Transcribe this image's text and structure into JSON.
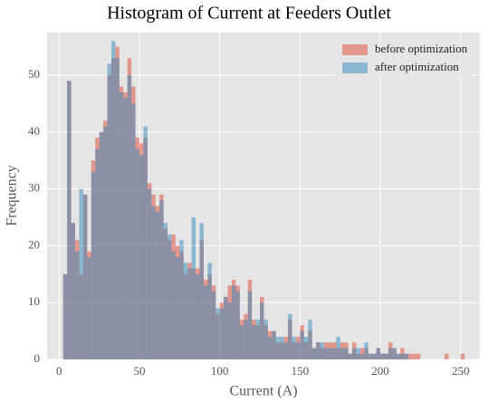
{
  "chart_data": {
    "type": "histogram",
    "title": "Histogram of Current at Feeders Outlet",
    "x_label": "Current (A)",
    "y_label": "Frequency",
    "bins": [
      2.5,
      5,
      7.5,
      10,
      12.5,
      15,
      17.5,
      20,
      22.5,
      25,
      27.5,
      30,
      32.5,
      35,
      37.5,
      40,
      42.5,
      45,
      47.5,
      50,
      52.5,
      55,
      57.5,
      60,
      62.5,
      65,
      67.5,
      70,
      72.5,
      75,
      77.5,
      80,
      82.5,
      85,
      87.5,
      90,
      92.5,
      95,
      97.5,
      100,
      102.5,
      105,
      107.5,
      110,
      112.5,
      115,
      117.5,
      120,
      122.5,
      125,
      127.5,
      130,
      132.5,
      135,
      137.5,
      140,
      142.5,
      145,
      147.5,
      150,
      152.5,
      155,
      157.5,
      160,
      162.5,
      165,
      167.5,
      170,
      172.5,
      175,
      177.5,
      180,
      182.5,
      185,
      187.5,
      190,
      192.5,
      195,
      197.5,
      200,
      202.5,
      205,
      207.5,
      210,
      212.5,
      215,
      217.5,
      220,
      222.5,
      225,
      227.5,
      230,
      232.5,
      235,
      237.5,
      240,
      242.5,
      245,
      247.5,
      250,
      252.5
    ],
    "series": [
      {
        "name": "before optimization",
        "color": "#E24A33",
        "values": [
          15,
          49,
          24,
          21,
          15,
          29,
          19,
          35,
          39,
          40,
          42,
          50,
          53,
          55,
          48,
          47,
          53,
          48,
          39,
          38,
          39,
          31,
          29,
          27,
          29,
          23,
          21,
          22,
          20,
          19,
          15,
          17,
          16,
          16,
          21,
          14,
          15,
          13,
          8,
          10,
          11,
          13,
          14,
          13,
          7,
          8,
          14,
          7,
          6,
          11,
          6,
          5,
          5,
          3,
          3,
          4,
          7,
          3,
          4,
          6,
          3,
          5,
          2,
          3,
          2,
          3,
          3,
          3,
          2,
          3,
          3,
          1,
          3,
          1,
          2,
          2,
          1,
          1,
          2,
          1,
          1,
          3,
          2,
          1,
          2,
          1,
          1,
          1,
          1,
          0,
          0,
          0,
          0,
          0,
          0,
          1,
          0,
          0,
          0,
          1
        ]
      },
      {
        "name": "after optimization",
        "color": "#348ABD",
        "values": [
          15,
          49,
          24,
          19,
          30,
          29,
          18,
          33,
          37,
          40,
          41,
          52,
          56,
          53,
          47,
          46,
          50,
          45,
          37,
          36,
          41,
          30,
          27,
          26,
          28,
          24,
          22,
          19,
          18,
          21,
          17,
          16,
          25,
          15,
          24,
          13,
          17,
          12,
          9,
          9,
          11,
          10,
          13,
          12,
          6,
          7,
          12,
          6,
          7,
          10,
          7,
          4,
          5,
          4,
          4,
          3,
          8,
          4,
          3,
          5,
          4,
          7,
          2,
          3,
          3,
          2,
          2,
          2,
          4,
          2,
          2,
          1,
          2,
          2,
          1,
          3,
          1,
          1,
          2,
          1,
          1,
          2,
          2,
          1,
          1,
          1,
          0,
          0,
          0,
          0,
          0,
          0,
          0,
          0,
          0,
          0,
          0,
          0,
          0,
          0
        ]
      }
    ],
    "xlim": [
      -7.5,
      262
    ],
    "ylim": [
      0,
      57.5
    ],
    "xticks": [
      0,
      50,
      100,
      150,
      200,
      250
    ],
    "yticks": [
      0,
      10,
      20,
      30,
      40,
      50
    ],
    "grid": true,
    "legend": "upper right"
  }
}
